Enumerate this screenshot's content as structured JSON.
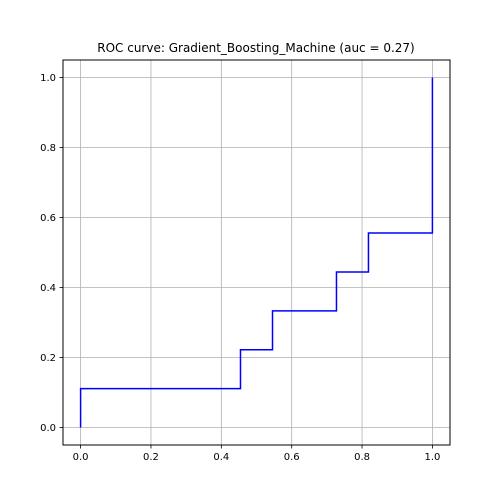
{
  "chart_data": {
    "type": "line",
    "title": "ROC curve: Gradient_Boosting_Machine (auc = 0.27)",
    "xlabel": "",
    "ylabel": "",
    "xlim": [
      -0.05,
      1.05
    ],
    "ylim": [
      -0.05,
      1.05
    ],
    "grid": true,
    "xticks": [
      0.0,
      0.2,
      0.4,
      0.6,
      0.8,
      1.0
    ],
    "yticks": [
      0.0,
      0.2,
      0.4,
      0.6,
      0.8,
      1.0
    ],
    "xtick_labels": [
      "0.0",
      "0.2",
      "0.4",
      "0.6",
      "0.8",
      "1.0"
    ],
    "ytick_labels": [
      "0.0",
      "0.2",
      "0.4",
      "0.6",
      "0.8",
      "1.0"
    ],
    "series": [
      {
        "color": "#0000ff",
        "x": [
          0.0,
          0.0,
          0.4545,
          0.4545,
          0.5455,
          0.5455,
          0.7273,
          0.7273,
          0.8182,
          0.8182,
          1.0,
          1.0
        ],
        "y": [
          0.0,
          0.1111,
          0.1111,
          0.2222,
          0.2222,
          0.3333,
          0.3333,
          0.4444,
          0.4444,
          0.5556,
          0.5556,
          1.0
        ]
      }
    ]
  }
}
